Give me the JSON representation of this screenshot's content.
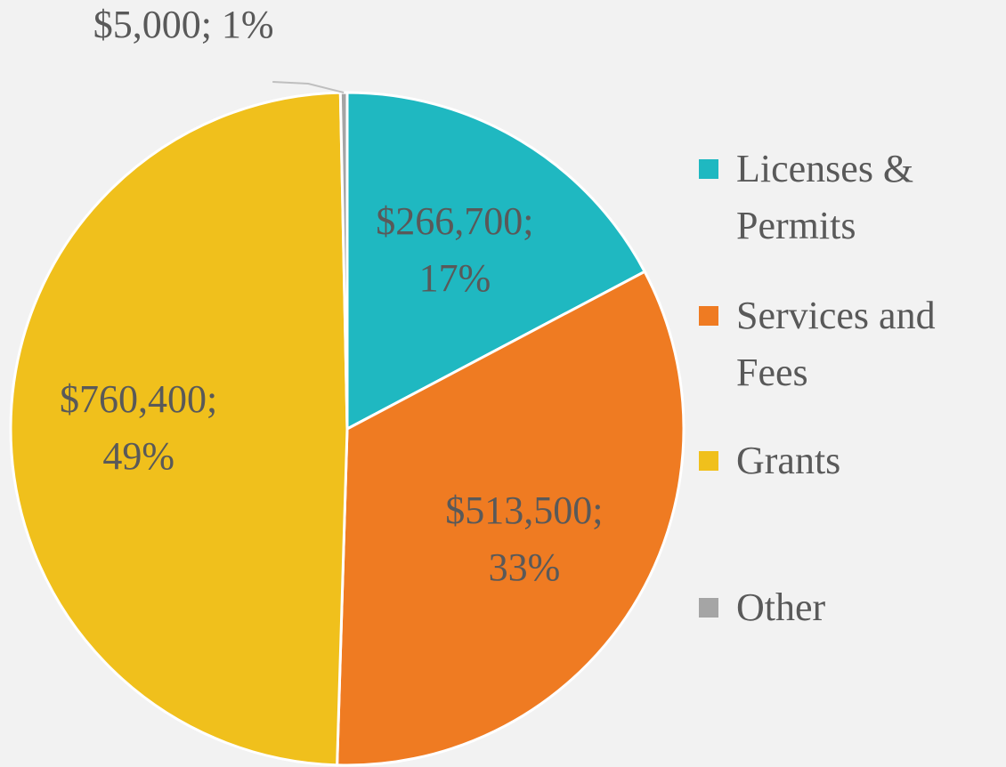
{
  "chart_data": {
    "type": "pie",
    "categories": [
      "Licenses & Permits",
      "Services and Fees",
      "Grants",
      "Other"
    ],
    "values": [
      266700,
      513500,
      760400,
      5000
    ],
    "value_labels": [
      "$266,700; 17%",
      "$513,500; 33%",
      "$760,400; 49%",
      "$5,000; 1%"
    ],
    "colors": [
      "#1fb8c1",
      "#ef7b22",
      "#f0c01c",
      "#a5a5a5"
    ],
    "legend": "right"
  }
}
